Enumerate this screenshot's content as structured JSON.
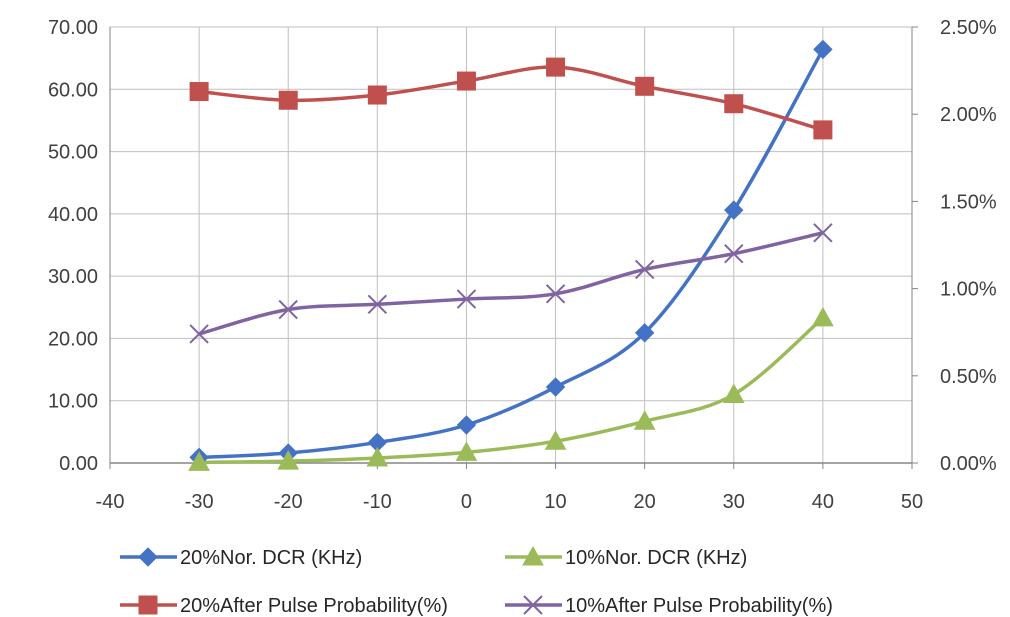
{
  "chart_data": {
    "type": "line",
    "title": "",
    "xlabel": "",
    "ylabel": "",
    "y2label": "",
    "xlim": [
      -40,
      50
    ],
    "x_ticks": [
      -40,
      -30,
      -20,
      -10,
      0,
      10,
      20,
      30,
      40,
      50
    ],
    "x_tick_labels": [
      "-40",
      "-30",
      "-20",
      "-10",
      "0",
      "10",
      "20",
      "30",
      "40",
      "50"
    ],
    "ylim": [
      0,
      70
    ],
    "y_ticks": [
      0,
      10,
      20,
      30,
      40,
      50,
      60,
      70
    ],
    "y_tick_labels": [
      "0.00",
      "10.00",
      "20.00",
      "30.00",
      "40.00",
      "50.00",
      "60.00",
      "70.00"
    ],
    "y2lim": [
      0,
      2.5
    ],
    "y2_ticks": [
      0,
      0.5,
      1.0,
      1.5,
      2.0,
      2.5
    ],
    "y2_tick_labels": [
      "0.00%",
      "0.50%",
      "1.00%",
      "1.50%",
      "2.00%",
      "2.50%"
    ],
    "grid": true,
    "legend_position": "bottom",
    "x": [
      -30,
      -20,
      -10,
      0,
      10,
      20,
      30,
      40
    ],
    "series": [
      {
        "name": "20%Nor. DCR (KHz)",
        "axis": "left",
        "marker": "diamond",
        "color": "#4472C4",
        "values": [
          0.9,
          1.6,
          3.3,
          6.1,
          12.2,
          20.9,
          40.6,
          66.4
        ]
      },
      {
        "name": "20%After Pulse Probability(%)",
        "axis": "right",
        "marker": "square",
        "color": "#C0504D",
        "values": [
          2.13,
          2.08,
          2.11,
          2.19,
          2.27,
          2.16,
          2.06,
          1.91
        ]
      },
      {
        "name": "10%Nor. DCR (KHz)",
        "axis": "left",
        "marker": "triangle",
        "color": "#9BBB59",
        "values": [
          0.1,
          0.3,
          0.8,
          1.7,
          3.5,
          6.7,
          11.0,
          23.3
        ]
      },
      {
        "name": "10%After Pulse Probability(%)",
        "axis": "right",
        "marker": "x",
        "color": "#8064A2",
        "values": [
          0.74,
          0.88,
          0.91,
          0.94,
          0.97,
          1.11,
          1.2,
          1.32
        ]
      }
    ]
  }
}
